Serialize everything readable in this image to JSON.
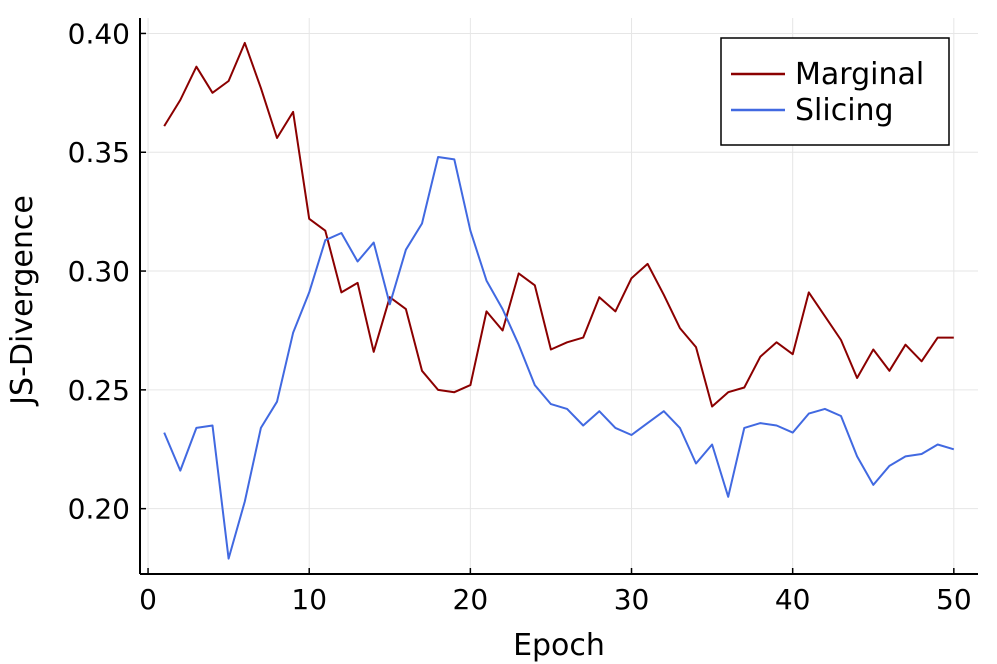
{
  "chart_data": {
    "type": "line",
    "xlabel": "Epoch",
    "ylabel": "JS-Divergence",
    "xlim": [
      -0.5,
      51.5
    ],
    "ylim": [
      0.1725,
      0.4065
    ],
    "x_ticks": [
      0,
      10,
      20,
      30,
      40,
      50
    ],
    "y_ticks": [
      0.2,
      0.25,
      0.3,
      0.35,
      0.4
    ],
    "x_tick_labels": [
      "0",
      "10",
      "20",
      "30",
      "40",
      "50"
    ],
    "y_tick_labels": [
      "0.20",
      "0.25",
      "0.30",
      "0.35",
      "0.40"
    ],
    "grid": true,
    "legend_position": "top-right",
    "x": [
      1,
      2,
      3,
      4,
      5,
      6,
      7,
      8,
      9,
      10,
      11,
      12,
      13,
      14,
      15,
      16,
      17,
      18,
      19,
      20,
      21,
      22,
      23,
      24,
      25,
      26,
      27,
      28,
      29,
      30,
      31,
      32,
      33,
      34,
      35,
      36,
      37,
      38,
      39,
      40,
      41,
      42,
      43,
      44,
      45,
      46,
      47,
      48,
      49,
      50
    ],
    "series": [
      {
        "name": "Marginal",
        "color": "#8b0000",
        "values": [
          0.361,
          0.372,
          0.386,
          0.375,
          0.38,
          0.396,
          0.377,
          0.356,
          0.367,
          0.322,
          0.317,
          0.291,
          0.295,
          0.266,
          0.289,
          0.284,
          0.258,
          0.25,
          0.249,
          0.252,
          0.283,
          0.275,
          0.299,
          0.294,
          0.267,
          0.27,
          0.272,
          0.289,
          0.283,
          0.297,
          0.303,
          0.29,
          0.276,
          0.268,
          0.243,
          0.249,
          0.251,
          0.264,
          0.27,
          0.265,
          0.291,
          0.281,
          0.271,
          0.255,
          0.267,
          0.258,
          0.269,
          0.262,
          0.272,
          0.272
        ]
      },
      {
        "name": "Slicing",
        "color": "#4169e1",
        "values": [
          0.232,
          0.216,
          0.234,
          0.235,
          0.179,
          0.203,
          0.234,
          0.245,
          0.274,
          0.291,
          0.313,
          0.316,
          0.304,
          0.312,
          0.286,
          0.309,
          0.32,
          0.348,
          0.347,
          0.317,
          0.296,
          0.284,
          0.269,
          0.252,
          0.244,
          0.242,
          0.235,
          0.241,
          0.234,
          0.231,
          0.236,
          0.241,
          0.234,
          0.219,
          0.227,
          0.205,
          0.234,
          0.236,
          0.235,
          0.232,
          0.24,
          0.242,
          0.239,
          0.222,
          0.21,
          0.218,
          0.222,
          0.223,
          0.227,
          0.225
        ]
      }
    ]
  }
}
